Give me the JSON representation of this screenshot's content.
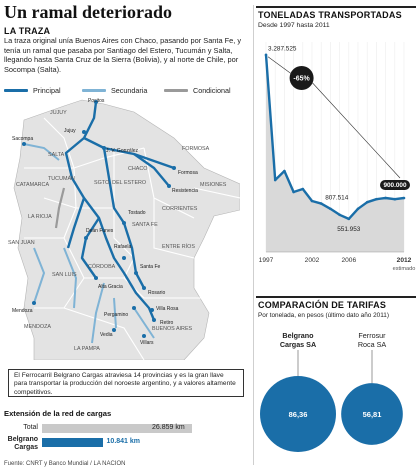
{
  "page": {
    "title": "Un ramal deteriorado",
    "source": "Fuente: CNRT y Banco Mundial / LA NACION"
  },
  "traza": {
    "heading": "LA TRAZA",
    "text": "La traza original unía Buenos Aires con Chaco, pasando por Santa Fe, y tenía un ramal que pasaba por Santiago del Estero, Tucumán y Salta, llegando hasta Santa Cruz de la Sierra (Bolivia), y al norte de Chile, por Socompa (Salta).",
    "legend": [
      {
        "label": "Principal",
        "color": "#1a6ea8"
      },
      {
        "label": "Secundaria",
        "color": "#7fb3d5"
      },
      {
        "label": "Condicional",
        "color": "#9a9a9a"
      }
    ]
  },
  "map": {
    "provinces": [
      "JUJUY",
      "SALTA",
      "TUCUMÁN",
      "CATAMARCA",
      "LA RIOJA",
      "SAN JUAN",
      "MENDOZA",
      "SAN LUIS",
      "CÓRDOBA",
      "SANTA FE",
      "SGTO. DEL ESTERO",
      "CHACO",
      "FORMOSA",
      "CORRIENTES",
      "MISIONES",
      "ENTRE RÍOS",
      "BUENOS AIRES",
      "LA PAMPA"
    ],
    "cities": [
      "Pocitos",
      "Jujuy",
      "Sacompa",
      "J. V. González",
      "Formosa",
      "Resistencia",
      "Tostado",
      "Deán Funes",
      "Rafaela",
      "Santa Fe",
      "Alta Gracia",
      "Rosario",
      "Mendoza",
      "Pergamino",
      "Villa Rosa",
      "Retiro",
      "Vedia",
      "Villars"
    ]
  },
  "callout": {
    "text": "El Ferrocarril Belgrano Cargas atraviesa 14 provincias y es la gran llave para transportar la producción del noroeste argentino, y a valores altamente competitivos."
  },
  "extension": {
    "title": "Extensión de la red de cargas",
    "total_label": "Total",
    "total_value": "26.859 km",
    "belgrano_label": "Belgrano Cargas",
    "belgrano_value": "10.841 km",
    "total_km": 26859,
    "belgrano_km": 10841,
    "color_total": "#c9c9c9",
    "color_belgrano": "#1a6ea8"
  },
  "tonnage": {
    "heading": "TONELADAS TRANSPORTADAS",
    "subheading": "Desde 1997 hasta 2011",
    "badge": "-65%",
    "estimado_label": "estimado",
    "annotations": [
      {
        "year": 1997,
        "label": "3.287.525"
      },
      {
        "year": 2003,
        "label": "807.514"
      },
      {
        "year": 2006,
        "label": "551.953"
      },
      {
        "year": 2012,
        "label": "900.000"
      }
    ]
  },
  "chart_data": [
    {
      "type": "area",
      "title": "TONELADAS TRANSPORTADAS",
      "subtitle": "Desde 1997 hasta 2011",
      "x": [
        1997,
        1998,
        1999,
        2000,
        2001,
        2002,
        2003,
        2004,
        2005,
        2006,
        2007,
        2008,
        2009,
        2010,
        2011,
        2012
      ],
      "values": [
        3287525,
        1200000,
        1350000,
        1000000,
        1050000,
        850000,
        807514,
        720000,
        620000,
        551953,
        720000,
        830000,
        880000,
        900000,
        880000,
        900000
      ],
      "xticks": [
        "1997",
        "2002",
        "2006",
        "2012"
      ],
      "ylim": [
        0,
        3500000
      ],
      "grid": true,
      "color_line": "#1a6ea8",
      "color_fill": "#d9d9d9"
    },
    {
      "type": "bubble",
      "title": "COMPARACIÓN DE TARIFAS",
      "subtitle": "Por tonelada, en pesos (último dato año 2011)",
      "series": [
        {
          "name": "Belgrano Cargas SA",
          "value": 86.36,
          "label": "86,36",
          "color": "#1a6ea8"
        },
        {
          "name": "Ferrosur Roca SA",
          "value": 56.81,
          "label": "56,81",
          "color": "#1a6ea8"
        }
      ]
    }
  ]
}
